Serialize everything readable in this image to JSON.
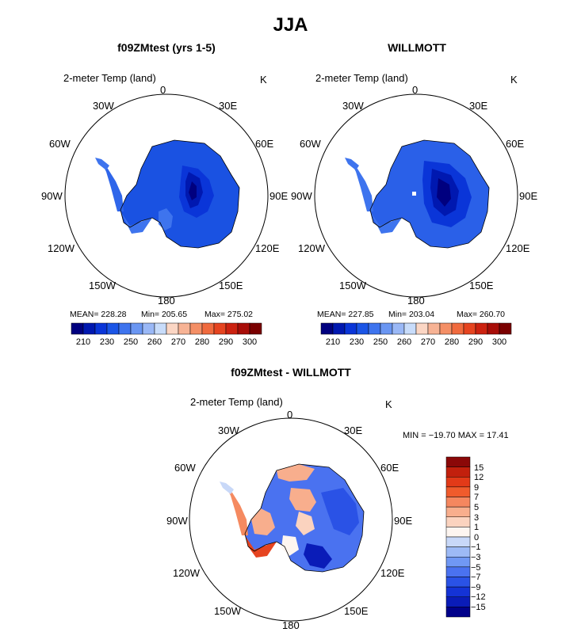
{
  "figure": {
    "title": "JJA"
  },
  "colors": {
    "seq": [
      "#00007f",
      "#0018b0",
      "#0a35d8",
      "#1b55e6",
      "#3e74ee",
      "#6a96f2",
      "#9ab8f6",
      "#c8dcfa",
      "#fbd6c4",
      "#f7b395",
      "#f48f66",
      "#f06a3e",
      "#e64420",
      "#cc2210",
      "#a80d08",
      "#7a0000"
    ],
    "diff": [
      "#01018a",
      "#0a1cb8",
      "#1433d6",
      "#2a52e6",
      "#4a72f0",
      "#7098f4",
      "#9dbaf6",
      "#c8d8f8",
      "#fdf5f0",
      "#fbd3bf",
      "#f8ae8d",
      "#f5875f",
      "#f05b2c",
      "#e23a18",
      "#c2200d",
      "#8b0808"
    ]
  },
  "panels": [
    {
      "title": "f09ZMtest (yrs 1-5)",
      "field_label": "2-meter Temp (land)",
      "unit": "K",
      "stats": {
        "mean": "MEAN= 228.28",
        "min": "Min= 205.65",
        "max": "Max= 275.02"
      },
      "colorbar_labels": [
        "210",
        "230",
        "250",
        "260",
        "270",
        "280",
        "290",
        "300"
      ]
    },
    {
      "title": "WILLMOTT",
      "field_label": "2-meter Temp (land)",
      "unit": "K",
      "stats": {
        "mean": "MEAN= 227.85",
        "min": "Min= 203.04",
        "max": "Max= 260.70"
      },
      "colorbar_labels": [
        "210",
        "230",
        "250",
        "260",
        "270",
        "280",
        "290",
        "300"
      ]
    },
    {
      "title": "f09ZMtest - WILLMOTT",
      "field_label": "2-meter Temp (land)",
      "unit": "K",
      "stats": {
        "minmax": "MIN = −19.70  MAX =   17.41"
      },
      "colorbar_labels": [
        "15",
        "12",
        "9",
        "7",
        "5",
        "3",
        "1",
        "0",
        "−1",
        "−3",
        "−5",
        "−7",
        "−9",
        "−12",
        "−15"
      ]
    }
  ],
  "map_labels": [
    "0",
    "30E",
    "60E",
    "90E",
    "120E",
    "150E",
    "180",
    "150W",
    "120W",
    "90W",
    "60W",
    "30W"
  ],
  "chart_data": [
    {
      "type": "heatmap",
      "projection": "south polar stereographic",
      "title": "f09ZMtest (yrs 1-5)",
      "variable": "2-meter Temp (land)",
      "units": "K",
      "mean": 228.28,
      "min": 205.65,
      "max": 275.02,
      "colorbar_levels": [
        210,
        230,
        250,
        260,
        270,
        280,
        290,
        300
      ]
    },
    {
      "type": "heatmap",
      "projection": "south polar stereographic",
      "title": "WILLMOTT",
      "variable": "2-meter Temp (land)",
      "units": "K",
      "mean": 227.85,
      "min": 203.04,
      "max": 260.7,
      "colorbar_levels": [
        210,
        230,
        250,
        260,
        270,
        280,
        290,
        300
      ]
    },
    {
      "type": "heatmap",
      "projection": "south polar stereographic",
      "title": "f09ZMtest - WILLMOTT",
      "variable": "2-meter Temp (land)",
      "units": "K",
      "min": -19.7,
      "max": 17.41,
      "colorbar_levels": [
        15,
        12,
        9,
        7,
        5,
        3,
        1,
        0,
        -1,
        -3,
        -5,
        -7,
        -9,
        -12,
        -15
      ]
    }
  ]
}
